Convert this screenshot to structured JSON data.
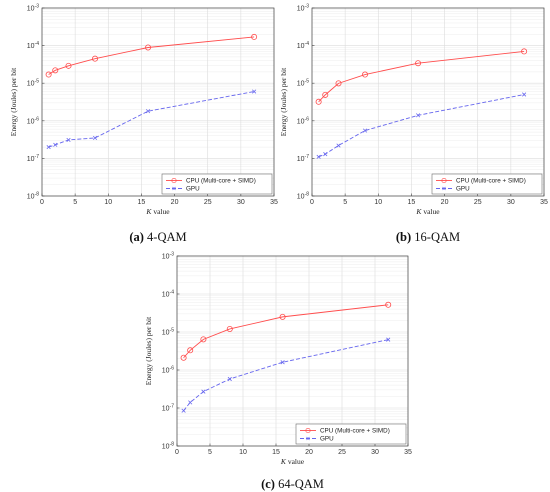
{
  "chart_data": [
    {
      "type": "line",
      "caption_tag": "(a)",
      "caption_text": "4-QAM",
      "xlabel_var": "K",
      "xlabel_text": "value",
      "ylabel": "Energy (Joules) per bit",
      "xlim": [
        0,
        35
      ],
      "ylim_log10": [
        -8,
        -3
      ],
      "y_scale": "log",
      "grid": true,
      "legend_position": "bottom-right",
      "xticks": [
        0,
        5,
        10,
        15,
        20,
        25,
        30,
        35
      ],
      "yticks": [
        -8,
        -7,
        -6,
        -5,
        -4,
        -3
      ],
      "series": [
        {
          "name": "CPU (Multi-core + SIMD)",
          "color": "#ff4d4d",
          "marker": "circle",
          "linestyle": "solid",
          "x": [
            1,
            2,
            4,
            8,
            16,
            32
          ],
          "y": [
            1.7e-05,
            2.2e-05,
            2.9e-05,
            4.5e-05,
            8.9e-05,
            0.00017
          ]
        },
        {
          "name": "GPU",
          "color": "#6666ee",
          "marker": "x",
          "linestyle": "dashed",
          "x": [
            1,
            2,
            4,
            8,
            16,
            32
          ],
          "y": [
            2e-07,
            2.3e-07,
            3.1e-07,
            3.5e-07,
            1.8e-06,
            6e-06
          ]
        }
      ]
    },
    {
      "type": "line",
      "caption_tag": "(b)",
      "caption_text": "16-QAM",
      "xlabel_var": "K",
      "xlabel_text": "value",
      "ylabel": "Energy (Joules) per bit",
      "xlim": [
        0,
        35
      ],
      "ylim_log10": [
        -8,
        -3
      ],
      "y_scale": "log",
      "grid": true,
      "legend_position": "bottom-right",
      "xticks": [
        0,
        5,
        10,
        15,
        20,
        25,
        30,
        35
      ],
      "yticks": [
        -8,
        -7,
        -6,
        -5,
        -4,
        -3
      ],
      "series": [
        {
          "name": "CPU (Multi-core + SIMD)",
          "color": "#ff4d4d",
          "marker": "circle",
          "linestyle": "solid",
          "x": [
            1,
            2,
            4,
            8,
            16,
            32
          ],
          "y": [
            3.2e-06,
            4.9e-06,
            9.9e-06,
            1.7e-05,
            3.4e-05,
            7e-05
          ]
        },
        {
          "name": "GPU",
          "color": "#6666ee",
          "marker": "x",
          "linestyle": "dashed",
          "x": [
            1,
            2,
            4,
            8,
            16,
            32
          ],
          "y": [
            1.1e-07,
            1.3e-07,
            2.2e-07,
            5.5e-07,
            1.4e-06,
            5e-06
          ]
        }
      ]
    },
    {
      "type": "line",
      "caption_tag": "(c)",
      "caption_text": "64-QAM",
      "xlabel_var": "K",
      "xlabel_text": "value",
      "ylabel": "Energy (Joules) per bit",
      "xlim": [
        0,
        35
      ],
      "ylim_log10": [
        -8,
        -3
      ],
      "y_scale": "log",
      "grid": true,
      "legend_position": "bottom-right",
      "xticks": [
        0,
        5,
        10,
        15,
        20,
        25,
        30,
        35
      ],
      "yticks": [
        -8,
        -7,
        -6,
        -5,
        -4,
        -3
      ],
      "series": [
        {
          "name": "CPU (Multi-core + SIMD)",
          "color": "#ff4d4d",
          "marker": "circle",
          "linestyle": "solid",
          "x": [
            1,
            2,
            4,
            8,
            16,
            32
          ],
          "y": [
            2.1e-06,
            3.3e-06,
            6.4e-06,
            1.2e-05,
            2.5e-05,
            5.2e-05
          ]
        },
        {
          "name": "GPU",
          "color": "#6666ee",
          "marker": "x",
          "linestyle": "dashed",
          "x": [
            1,
            2,
            4,
            8,
            16,
            32
          ],
          "y": [
            8.5e-08,
            1.4e-07,
            2.7e-07,
            5.8e-07,
            1.6e-06,
            6.3e-06
          ]
        }
      ]
    }
  ]
}
